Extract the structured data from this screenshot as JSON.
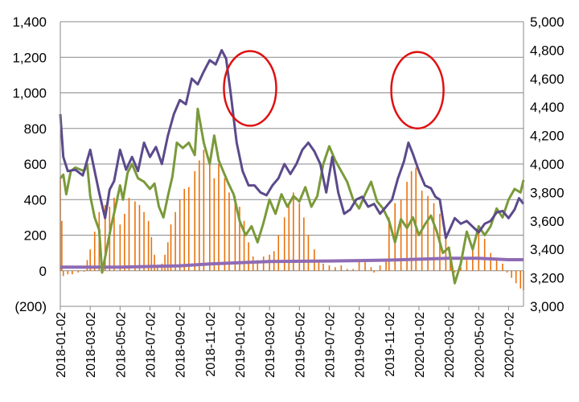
{
  "chart_data": {
    "type": "combo-bar-line",
    "title": "",
    "x_dates": [
      "2018-01-02",
      "2018-03-02",
      "2018-05-02",
      "2018-07-02",
      "2018-09-02",
      "2018-11-02",
      "2019-01-02",
      "2019-03-02",
      "2019-05-02",
      "2019-07-02",
      "2019-09-02",
      "2019-11-02",
      "2020-01-02",
      "2020-03-02",
      "2020-05-02",
      "2020-07-02"
    ],
    "x_range": [
      0,
      31
    ],
    "y_left": {
      "range": [
        -200,
        1400
      ],
      "ticks": [
        -200,
        0,
        200,
        400,
        600,
        800,
        1000,
        1200,
        1400
      ],
      "tick_labels": [
        "(200)",
        "0",
        "200",
        "400",
        "600",
        "800",
        "1,000",
        "1,200",
        "1,400"
      ]
    },
    "y_right": {
      "range": [
        3000,
        5000
      ],
      "ticks": [
        3000,
        3200,
        3400,
        3600,
        3800,
        4000,
        4200,
        4400,
        4600,
        4800,
        5000
      ],
      "tick_labels": [
        "3,000",
        "3,200",
        "3,400",
        "3,600",
        "3,800",
        "4,000",
        "4,200",
        "4,400",
        "4,600",
        "4,800",
        "5,000"
      ]
    },
    "gridlines": "horizontal",
    "legend": "none",
    "colors": {
      "bars": "#E8730E",
      "dark_line": "#5B4A8B",
      "green_line": "#7A9A3A",
      "flat_line": "#8E6BB5",
      "ellipse": "#E01010",
      "grid": "#8A8A8A"
    },
    "series": [
      {
        "name": "orange bars",
        "type": "bar",
        "axis": "left",
        "points": [
          [
            0,
            520
          ],
          [
            0.1,
            280
          ],
          [
            0.2,
            -30
          ],
          [
            0.5,
            -20
          ],
          [
            0.8,
            -20
          ],
          [
            1.2,
            -10
          ],
          [
            1.6,
            -5
          ],
          [
            1.8,
            60
          ],
          [
            2.0,
            120
          ],
          [
            2.3,
            220
          ],
          [
            2.6,
            330
          ],
          [
            3.0,
            370
          ],
          [
            3.3,
            360
          ],
          [
            3.6,
            410
          ],
          [
            4.0,
            260
          ],
          [
            4.3,
            320
          ],
          [
            4.6,
            410
          ],
          [
            5.0,
            390
          ],
          [
            5.3,
            370
          ],
          [
            5.6,
            330
          ],
          [
            5.9,
            280
          ],
          [
            6.1,
            190
          ],
          [
            6.3,
            90
          ],
          [
            6.5,
            30
          ],
          [
            6.8,
            40
          ],
          [
            7.0,
            90
          ],
          [
            7.2,
            160
          ],
          [
            7.4,
            260
          ],
          [
            7.7,
            330
          ],
          [
            8.0,
            400
          ],
          [
            8.3,
            460
          ],
          [
            8.6,
            470
          ],
          [
            9.0,
            560
          ],
          [
            9.3,
            620
          ],
          [
            9.6,
            680
          ],
          [
            10.0,
            610
          ],
          [
            10.3,
            520
          ],
          [
            10.6,
            600
          ],
          [
            11.0,
            520
          ],
          [
            11.3,
            440
          ],
          [
            11.7,
            420
          ],
          [
            12.0,
            360
          ],
          [
            12.3,
            280
          ],
          [
            12.6,
            160
          ],
          [
            12.9,
            80
          ],
          [
            13.2,
            60
          ],
          [
            13.6,
            80
          ],
          [
            14.0,
            90
          ],
          [
            14.3,
            110
          ],
          [
            14.6,
            200
          ],
          [
            15.0,
            300
          ],
          [
            15.3,
            380
          ],
          [
            15.6,
            440
          ],
          [
            16.0,
            380
          ],
          [
            16.3,
            300
          ],
          [
            16.6,
            200
          ],
          [
            17.0,
            120
          ],
          [
            17.3,
            60
          ],
          [
            17.6,
            40
          ],
          [
            18.0,
            30
          ],
          [
            18.4,
            20
          ],
          [
            18.8,
            30
          ],
          [
            19.2,
            10
          ],
          [
            19.6,
            10
          ],
          [
            20.0,
            60
          ],
          [
            20.4,
            50
          ],
          [
            20.8,
            20
          ],
          [
            21.0,
            -10
          ],
          [
            21.4,
            30
          ],
          [
            21.8,
            60
          ],
          [
            22.0,
            300
          ],
          [
            22.4,
            380
          ],
          [
            22.8,
            400
          ],
          [
            23.2,
            500
          ],
          [
            23.5,
            560
          ],
          [
            23.8,
            580
          ],
          [
            24.2,
            450
          ],
          [
            24.6,
            420
          ],
          [
            25.0,
            380
          ],
          [
            25.4,
            320
          ],
          [
            25.8,
            200
          ],
          [
            26.1,
            80
          ],
          [
            26.4,
            -10
          ],
          [
            26.8,
            20
          ],
          [
            27.2,
            60
          ],
          [
            27.6,
            140
          ],
          [
            28.0,
            240
          ],
          [
            28.4,
            180
          ],
          [
            28.8,
            100
          ],
          [
            29.2,
            60
          ],
          [
            29.6,
            40
          ],
          [
            29.9,
            -10
          ],
          [
            30.2,
            -40
          ],
          [
            30.5,
            -70
          ],
          [
            30.8,
            -100
          ],
          [
            31.0,
            -110
          ]
        ]
      },
      {
        "name": "dark purple line",
        "type": "line",
        "axis": "right",
        "points": [
          [
            0,
            4350
          ],
          [
            0.2,
            4050
          ],
          [
            0.5,
            3950
          ],
          [
            1.0,
            3960
          ],
          [
            1.5,
            3920
          ],
          [
            2.0,
            4100
          ],
          [
            2.3,
            3950
          ],
          [
            2.6,
            3800
          ],
          [
            3.0,
            3620
          ],
          [
            3.3,
            3820
          ],
          [
            3.6,
            3880
          ],
          [
            4.0,
            4100
          ],
          [
            4.4,
            3960
          ],
          [
            4.8,
            4050
          ],
          [
            5.2,
            3950
          ],
          [
            5.6,
            4150
          ],
          [
            6.0,
            4050
          ],
          [
            6.4,
            4120
          ],
          [
            6.8,
            4000
          ],
          [
            7.2,
            4200
          ],
          [
            7.6,
            4350
          ],
          [
            8.0,
            4450
          ],
          [
            8.4,
            4420
          ],
          [
            8.8,
            4600
          ],
          [
            9.2,
            4560
          ],
          [
            9.6,
            4650
          ],
          [
            10.0,
            4730
          ],
          [
            10.4,
            4700
          ],
          [
            10.8,
            4800
          ],
          [
            11.1,
            4740
          ],
          [
            11.4,
            4500
          ],
          [
            11.8,
            4150
          ],
          [
            12.2,
            3950
          ],
          [
            12.6,
            3850
          ],
          [
            13.0,
            3850
          ],
          [
            13.4,
            3800
          ],
          [
            13.8,
            3780
          ],
          [
            14.2,
            3850
          ],
          [
            14.6,
            3900
          ],
          [
            15.0,
            4000
          ],
          [
            15.4,
            3930
          ],
          [
            15.8,
            4000
          ],
          [
            16.2,
            4100
          ],
          [
            16.6,
            4150
          ],
          [
            17.0,
            4090
          ],
          [
            17.4,
            4000
          ],
          [
            17.8,
            3800
          ],
          [
            18.2,
            4050
          ],
          [
            18.6,
            3800
          ],
          [
            19.0,
            3650
          ],
          [
            19.4,
            3680
          ],
          [
            19.8,
            3750
          ],
          [
            20.2,
            3770
          ],
          [
            20.6,
            3700
          ],
          [
            21.0,
            3720
          ],
          [
            21.4,
            3650
          ],
          [
            21.8,
            3700
          ],
          [
            22.2,
            3750
          ],
          [
            22.6,
            3900
          ],
          [
            23.0,
            4020
          ],
          [
            23.3,
            4150
          ],
          [
            23.6,
            4070
          ],
          [
            24.0,
            3950
          ],
          [
            24.4,
            3850
          ],
          [
            24.8,
            3830
          ],
          [
            25.1,
            3770
          ],
          [
            25.4,
            3750
          ],
          [
            25.8,
            3480
          ],
          [
            26.1,
            3550
          ],
          [
            26.4,
            3620
          ],
          [
            26.8,
            3580
          ],
          [
            27.2,
            3600
          ],
          [
            27.6,
            3560
          ],
          [
            28.0,
            3520
          ],
          [
            28.4,
            3580
          ],
          [
            28.8,
            3600
          ],
          [
            29.2,
            3660
          ],
          [
            29.6,
            3670
          ],
          [
            30.0,
            3620
          ],
          [
            30.4,
            3680
          ],
          [
            30.7,
            3760
          ],
          [
            31.0,
            3720
          ]
        ]
      },
      {
        "name": "green line",
        "type": "line",
        "axis": "left",
        "points": [
          [
            0,
            520
          ],
          [
            0.2,
            540
          ],
          [
            0.4,
            430
          ],
          [
            0.7,
            560
          ],
          [
            1.0,
            580
          ],
          [
            1.3,
            570
          ],
          [
            1.6,
            560
          ],
          [
            1.8,
            600
          ],
          [
            2.0,
            420
          ],
          [
            2.3,
            300
          ],
          [
            2.6,
            230
          ],
          [
            2.8,
            -10
          ],
          [
            3.1,
            120
          ],
          [
            3.4,
            250
          ],
          [
            3.7,
            360
          ],
          [
            4.0,
            480
          ],
          [
            4.2,
            400
          ],
          [
            4.5,
            550
          ],
          [
            4.8,
            600
          ],
          [
            5.2,
            520
          ],
          [
            5.6,
            500
          ],
          [
            6.0,
            460
          ],
          [
            6.3,
            490
          ],
          [
            6.6,
            360
          ],
          [
            6.9,
            300
          ],
          [
            7.2,
            420
          ],
          [
            7.5,
            530
          ],
          [
            7.8,
            720
          ],
          [
            8.2,
            690
          ],
          [
            8.6,
            720
          ],
          [
            9.0,
            650
          ],
          [
            9.2,
            910
          ],
          [
            9.6,
            720
          ],
          [
            10.0,
            600
          ],
          [
            10.3,
            760
          ],
          [
            10.6,
            620
          ],
          [
            10.9,
            560
          ],
          [
            11.2,
            500
          ],
          [
            11.6,
            430
          ],
          [
            12.0,
            280
          ],
          [
            12.4,
            200
          ],
          [
            12.8,
            250
          ],
          [
            13.2,
            160
          ],
          [
            13.6,
            270
          ],
          [
            14.0,
            400
          ],
          [
            14.4,
            320
          ],
          [
            14.8,
            430
          ],
          [
            15.2,
            360
          ],
          [
            15.6,
            420
          ],
          [
            16.0,
            390
          ],
          [
            16.4,
            470
          ],
          [
            16.8,
            360
          ],
          [
            17.2,
            420
          ],
          [
            17.6,
            600
          ],
          [
            18.0,
            700
          ],
          [
            18.4,
            620
          ],
          [
            18.8,
            560
          ],
          [
            19.2,
            500
          ],
          [
            19.6,
            400
          ],
          [
            20.0,
            350
          ],
          [
            20.4,
            430
          ],
          [
            20.8,
            500
          ],
          [
            21.2,
            390
          ],
          [
            21.6,
            350
          ],
          [
            22.0,
            280
          ],
          [
            22.4,
            160
          ],
          [
            22.8,
            290
          ],
          [
            23.2,
            240
          ],
          [
            23.6,
            300
          ],
          [
            24.0,
            200
          ],
          [
            24.4,
            260
          ],
          [
            24.8,
            310
          ],
          [
            25.2,
            220
          ],
          [
            25.6,
            100
          ],
          [
            26.0,
            130
          ],
          [
            26.4,
            -70
          ],
          [
            26.8,
            40
          ],
          [
            27.2,
            220
          ],
          [
            27.6,
            120
          ],
          [
            28.0,
            250
          ],
          [
            28.4,
            200
          ],
          [
            28.8,
            250
          ],
          [
            29.2,
            350
          ],
          [
            29.6,
            300
          ],
          [
            30.0,
            400
          ],
          [
            30.4,
            460
          ],
          [
            30.8,
            440
          ],
          [
            31.0,
            510
          ]
        ]
      },
      {
        "name": "flat purple line",
        "type": "line",
        "axis": "left",
        "points": [
          [
            0,
            20
          ],
          [
            4,
            20
          ],
          [
            8,
            28
          ],
          [
            10,
            38
          ],
          [
            12,
            45
          ],
          [
            14,
            52
          ],
          [
            18,
            55
          ],
          [
            20,
            57
          ],
          [
            22,
            60
          ],
          [
            24,
            65
          ],
          [
            26,
            70
          ],
          [
            28,
            70
          ],
          [
            30,
            62
          ],
          [
            31,
            62
          ]
        ]
      }
    ],
    "annotations": [
      {
        "type": "ellipse",
        "label": "highlight",
        "x_center": 12.7,
        "y_center": 1025,
        "x_radius": 1.75,
        "y_radius": 210
      },
      {
        "type": "ellipse",
        "label": "highlight",
        "x_center": 23.9,
        "y_center": 1015,
        "x_radius": 1.75,
        "y_radius": 215
      }
    ]
  }
}
